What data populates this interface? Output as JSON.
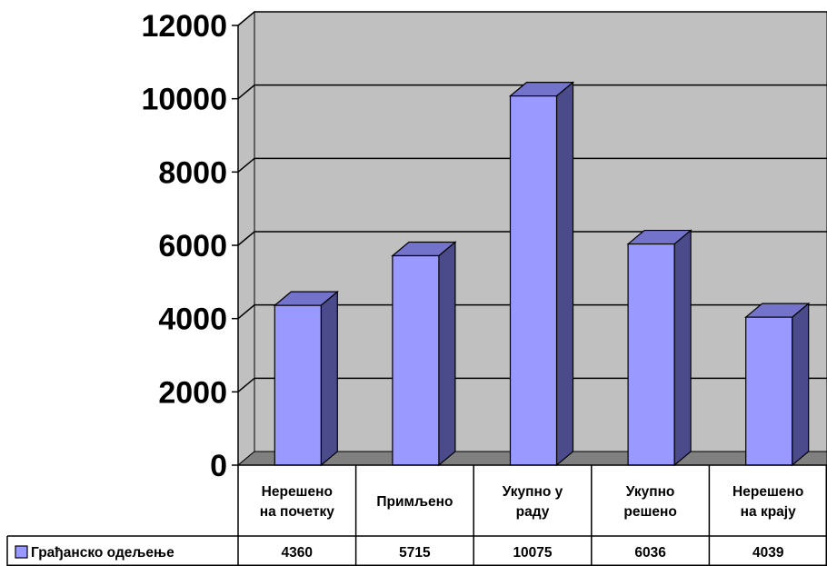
{
  "chart_data": {
    "type": "bar",
    "categories": [
      [
        "Нерешено",
        "на почетку"
      ],
      [
        "Примљено"
      ],
      [
        "Укупно у",
        "раду"
      ],
      [
        "Укупно",
        "решено"
      ],
      [
        "Нерешено",
        "на крају"
      ]
    ],
    "series": [
      {
        "name": "Грађанско одељење",
        "values": [
          4360,
          5715,
          10075,
          6036,
          4039
        ],
        "value_labels": [
          "4360",
          "5715",
          "10075",
          "6036",
          "4039"
        ],
        "color": "#9999ff"
      }
    ],
    "yticks": [
      "0",
      "2000",
      "4000",
      "6000",
      "8000",
      "10000",
      "12000"
    ],
    "ylim": [
      0,
      12000
    ],
    "grid": true,
    "style": "3d-bar-with-data-table",
    "colors": {
      "wall": "#c0c0c0",
      "floor": "#808080",
      "bar_front": "#9999ff",
      "bar_side": "#4b4b8c",
      "bar_top": "#7373cc"
    }
  }
}
